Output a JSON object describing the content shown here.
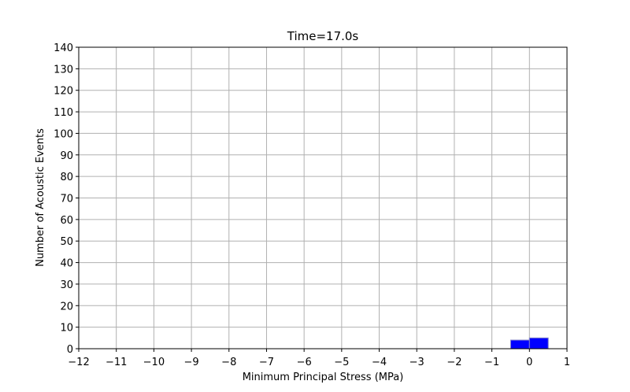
{
  "chart_data": {
    "type": "bar",
    "title": "Time=17.0s",
    "xlabel": "Minimum Principal Stress (MPa)",
    "ylabel": "Number of Acoustic Events",
    "xlim": [
      -12,
      1
    ],
    "ylim": [
      0,
      140
    ],
    "xticks": [
      -12,
      -11,
      -10,
      -9,
      -8,
      -7,
      -6,
      -5,
      -4,
      -3,
      -2,
      -1,
      0,
      1
    ],
    "yticks": [
      0,
      10,
      20,
      30,
      40,
      50,
      60,
      70,
      80,
      90,
      100,
      110,
      120,
      130,
      140
    ],
    "grid": true,
    "bins": [
      {
        "x0": -0.5,
        "x1": 0.0,
        "count": 4
      },
      {
        "x0": 0.0,
        "x1": 0.5,
        "count": 5
      }
    ],
    "bar_color": "#0000ff",
    "bar_edge_color": "#8080c8"
  }
}
